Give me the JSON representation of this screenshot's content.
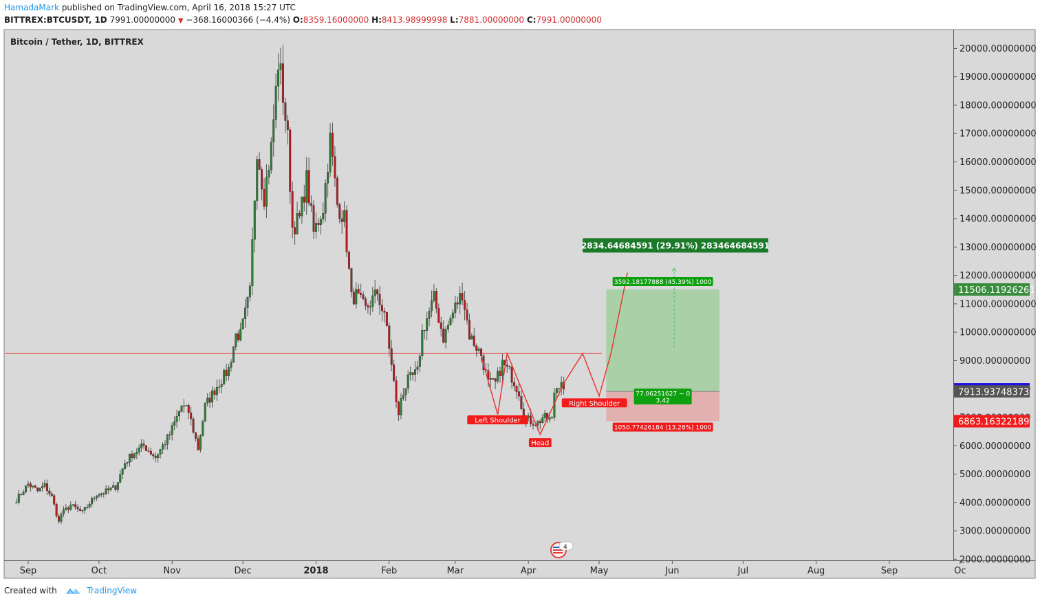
{
  "header": {
    "author": "HamadaMark",
    "published_text": "published on TradingView.com, April 16, 2018 15:27 UTC",
    "symbol_interval": "BITTREX:BTCUSDT, 1D",
    "last_price": "7991.00000000",
    "change": "−368.16000366 (−4.4%)",
    "open_label": "O:",
    "open": "8359.16000000",
    "high_label": "H:",
    "high": "8413.98999998",
    "low_label": "L:",
    "low": "7881.00000000",
    "close_label": "C:",
    "close": "7991.00000000"
  },
  "footer": {
    "created_with": "Created with",
    "brand": "TradingView"
  },
  "chart_data": {
    "type": "candlestick",
    "title": "Bitcoin / Tether, 1D, BITTREX",
    "x_ticks": [
      "Sep",
      "Oct",
      "Nov",
      "Dec",
      "2018",
      "Feb",
      "Mar",
      "Apr",
      "May",
      "Jun",
      "Jul",
      "Aug",
      "Sep",
      "Oc"
    ],
    "x_tick_dates": [
      "2017-09-01",
      "2017-10-01",
      "2017-11-01",
      "2017-12-01",
      "2018-01-01",
      "2018-02-01",
      "2018-03-01",
      "2018-04-01",
      "2018-05-01",
      "2018-06-01",
      "2018-07-01",
      "2018-08-01",
      "2018-09-01",
      "2018-10-01"
    ],
    "y_ticks": [
      "20000.00000000",
      "19000.00000000",
      "18000.00000000",
      "17000.00000000",
      "16000.00000000",
      "15000.00000000",
      "14000.00000000",
      "13000.00000000",
      "12000.00000000",
      "11000.00000000",
      "10000.00000000",
      "9000.00000000",
      "8000.00000000",
      "7000.00000000",
      "6000.00000000",
      "5000.00000000",
      "4000.00000000",
      "3000.00000000",
      "2000.00000000"
    ],
    "y_tick_values": [
      20000,
      19000,
      18000,
      17000,
      16000,
      15000,
      14000,
      13000,
      12000,
      11000,
      10000,
      9000,
      8000,
      7000,
      6000,
      5000,
      4000,
      3000,
      2000
    ],
    "ylim": [
      1960,
      20640
    ],
    "price_series": {
      "name": "BTCUSDT",
      "points": [
        [
          "2017-08-27",
          4100
        ],
        [
          "2017-09-01",
          4650
        ],
        [
          "2017-09-05",
          4400
        ],
        [
          "2017-09-08",
          4600
        ],
        [
          "2017-09-11",
          4200
        ],
        [
          "2017-09-14",
          3300
        ],
        [
          "2017-09-15",
          3600
        ],
        [
          "2017-09-19",
          3900
        ],
        [
          "2017-09-24",
          3650
        ],
        [
          "2017-09-30",
          4300
        ],
        [
          "2017-10-03",
          4350
        ],
        [
          "2017-10-08",
          4550
        ],
        [
          "2017-10-12",
          5400
        ],
        [
          "2017-10-15",
          5700
        ],
        [
          "2017-10-20",
          6000
        ],
        [
          "2017-10-25",
          5600
        ],
        [
          "2017-10-31",
          6400
        ],
        [
          "2017-11-05",
          7400
        ],
        [
          "2017-11-08",
          7200
        ],
        [
          "2017-11-12",
          5900
        ],
        [
          "2017-11-15",
          7400
        ],
        [
          "2017-11-20",
          8100
        ],
        [
          "2017-11-25",
          8700
        ],
        [
          "2017-11-28",
          9900
        ],
        [
          "2017-11-30",
          9900
        ],
        [
          "2017-12-04",
          11400
        ],
        [
          "2017-12-07",
          16500
        ],
        [
          "2017-12-10",
          14800
        ],
        [
          "2017-12-13",
          16500
        ],
        [
          "2017-12-16",
          19500
        ],
        [
          "2017-12-17",
          19100
        ],
        [
          "2017-12-20",
          16800
        ],
        [
          "2017-12-22",
          13700
        ],
        [
          "2017-12-25",
          14000
        ],
        [
          "2017-12-28",
          15400
        ],
        [
          "2017-12-31",
          13500
        ],
        [
          "2018-01-04",
          14400
        ],
        [
          "2018-01-07",
          16800
        ],
        [
          "2018-01-10",
          14500
        ],
        [
          "2018-01-13",
          14000
        ],
        [
          "2018-01-16",
          11200
        ],
        [
          "2018-01-18",
          11300
        ],
        [
          "2018-01-22",
          10800
        ],
        [
          "2018-01-27",
          11400
        ],
        [
          "2018-01-31",
          10200
        ],
        [
          "2018-02-02",
          8800
        ],
        [
          "2018-02-05",
          7000
        ],
        [
          "2018-02-06",
          7700
        ],
        [
          "2018-02-09",
          8300
        ],
        [
          "2018-02-13",
          8600
        ],
        [
          "2018-02-15",
          10000
        ],
        [
          "2018-02-20",
          11200
        ],
        [
          "2018-02-24",
          9800
        ],
        [
          "2018-03-01",
          10900
        ],
        [
          "2018-03-04",
          11400
        ],
        [
          "2018-03-07",
          9900
        ],
        [
          "2018-03-12",
          9200
        ],
        [
          "2018-03-15",
          8200
        ],
        [
          "2018-03-18",
          8200
        ],
        [
          "2018-03-21",
          8900
        ],
        [
          "2018-03-24",
          8600
        ],
        [
          "2018-03-28",
          7900
        ],
        [
          "2018-03-30",
          7000
        ],
        [
          "2018-04-01",
          6900
        ],
        [
          "2018-04-05",
          6800
        ],
        [
          "2018-04-07",
          7000
        ],
        [
          "2018-04-11",
          6900
        ],
        [
          "2018-04-12",
          7900
        ],
        [
          "2018-04-15",
          8350
        ],
        [
          "2018-04-16",
          7991
        ]
      ]
    },
    "horizontal_line": {
      "value": 9250
    },
    "pattern_path": [
      [
        "2018-03-12",
        9150
      ],
      [
        "2018-03-19",
        7100
      ],
      [
        "2018-03-23",
        9250
      ],
      [
        "2018-04-06",
        6400
      ],
      [
        "2018-04-16",
        8200
      ],
      [
        "2018-04-24",
        9250
      ],
      [
        "2018-05-01",
        7750
      ],
      [
        "2018-05-06",
        9250
      ],
      [
        "2018-05-13",
        12100
      ]
    ],
    "annotations": [
      {
        "text": "Left Shoulder",
        "date": "2018-03-19",
        "value": 6900
      },
      {
        "text": "Head",
        "date": "2018-04-06",
        "value": 6100
      },
      {
        "text": "Right Shoulder",
        "date": "2018-04-29",
        "value": 7500
      }
    ],
    "position": {
      "start_date": "2018-05-04",
      "end_date": "2018-06-21",
      "entry": 7913.93748373,
      "target": 11506.11926261,
      "stop": 6863.16322189,
      "target_label": "3592.18177888 (45.39%) 1000",
      "stop_label": "1050.77426184 (13.28%) 1000",
      "ratio_label_line1": "77.06251627 ~ 0",
      "ratio_label_line2": "3.42",
      "projection_label": "2834.64684591 (29.91%) 283464684591"
    },
    "price_labels": [
      {
        "text": "11506.11926261",
        "value": 11506.11926261,
        "color": "#388e3c"
      },
      {
        "text": "7991.00000000",
        "value": 7991,
        "color": "#1e10e6"
      },
      {
        "text": "7913.93748373",
        "value": 7913.93748373,
        "color": "#555555"
      },
      {
        "text": "6863.16322189",
        "value": 6863.16322189,
        "color": "#f21b1b"
      }
    ],
    "event_badge_count": "4",
    "grid": false
  }
}
